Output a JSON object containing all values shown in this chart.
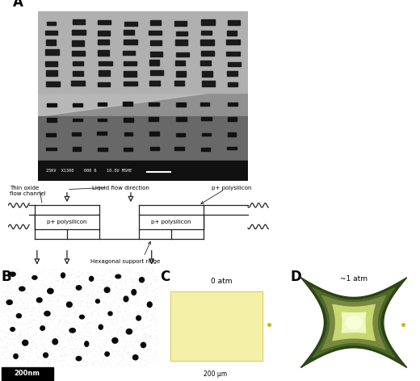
{
  "fig_width": 5.2,
  "fig_height": 4.72,
  "dpi": 100,
  "bg_color": "#ffffff",
  "panel_labels": [
    "A",
    "B",
    "C",
    "D"
  ],
  "panel_label_fontsize": 12,
  "panel_label_weight": "bold",
  "panel_C_bg": "#b0986a",
  "panel_C_rect_color": "#f5f0a8",
  "panel_C_label": "0 atm",
  "panel_C_scalebar_label": "200 μm",
  "panel_D_bg": "#b0986a",
  "panel_D_label": "~1 atm",
  "diagram_bg": "#ffffff",
  "diagram_label_thin_oxide": "Thin oxide\nflow channel",
  "diagram_label_liquid": "Liquid flow direction",
  "diagram_label_poly_top": "p+ polysilicon",
  "diagram_label_poly_L": "p+ polysilicon",
  "diagram_label_poly_R": "p+ polysilicon",
  "diagram_label_hex": "Hexagonal support ridge",
  "sem_info_text": "25KV  X1300    000 6    10.0U MSHE"
}
